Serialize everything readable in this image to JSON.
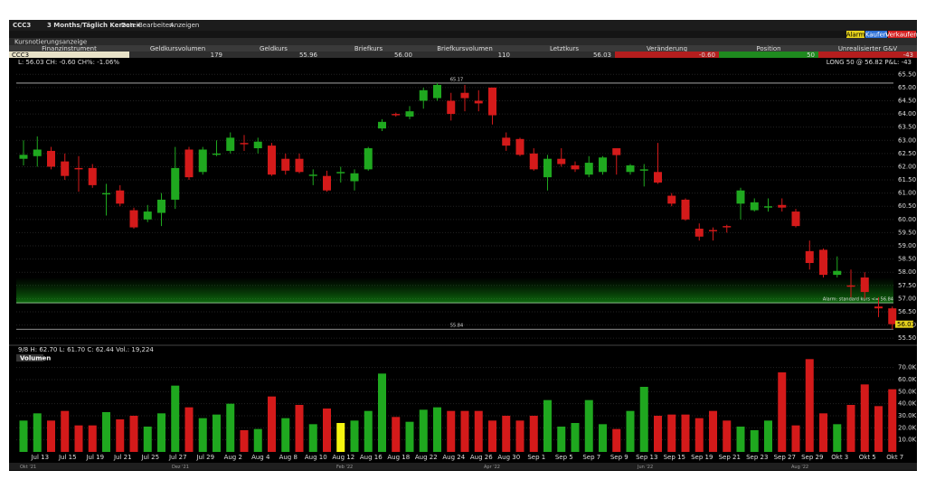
{
  "toolbar": {
    "symbol": "CCC3",
    "period": "3 Months/Täglich Kerzen ▾",
    "menu": [
      "Datei",
      "Bearbeiten",
      "Anzeigen"
    ],
    "buttons": [
      "Alarm",
      "Kaufen",
      "Verkaufen"
    ]
  },
  "quote_table": {
    "title": "Kursnotierungsanzeige",
    "columns": [
      "Finanzinstrument",
      "Geldkursvolumen",
      "Geldkurs",
      "Briefkurs",
      "Briefkursvolumen",
      "Letztkurs",
      "Veränderung",
      "Position",
      "Unrealisierter G&V"
    ],
    "row": [
      "CCC3",
      "179",
      "55.96",
      "56.00",
      "110",
      "56.03",
      "-0.60",
      "50",
      "-43"
    ]
  },
  "chart_data": [
    {
      "type": "candlestick",
      "info": "L: 56.03 CH: -0.60 CH%: -1.06%",
      "position_label": "LONG 50 @ 56.82 P&L: -43",
      "open": [
        62.3,
        62.4,
        62.6,
        62.2,
        61.95,
        61.95,
        60.95,
        61.1,
        60.35,
        60.0,
        60.25,
        60.75,
        62.65,
        61.8,
        62.45,
        62.6,
        62.9,
        62.7,
        62.8,
        62.3,
        62.3,
        61.65,
        61.65,
        61.75,
        61.45,
        61.9,
        63.45,
        64.0,
        63.9,
        64.5,
        64.6,
        64.5,
        64.8,
        64.5,
        65.0,
        63.1,
        63.05,
        62.5,
        61.6,
        62.3,
        62.05,
        61.7,
        61.8,
        62.7,
        61.8,
        61.85,
        61.8,
        60.9,
        60.75,
        59.65,
        59.6,
        59.75,
        60.6,
        60.35,
        60.45,
        60.55,
        60.3,
        58.8,
        58.85,
        57.9,
        57.5,
        57.8,
        56.7,
        56.63
      ],
      "high": [
        63.0,
        63.15,
        62.75,
        62.5,
        62.4,
        62.1,
        61.35,
        61.3,
        60.45,
        60.55,
        61.0,
        62.75,
        62.75,
        62.75,
        63.0,
        63.3,
        63.2,
        63.1,
        62.9,
        62.5,
        62.5,
        61.9,
        61.85,
        62.0,
        61.9,
        62.75,
        63.8,
        64.05,
        64.3,
        65.0,
        65.17,
        64.8,
        65.1,
        64.9,
        65.0,
        63.3,
        63.1,
        62.7,
        62.45,
        62.7,
        62.2,
        62.4,
        62.4,
        62.7,
        62.1,
        62.1,
        62.9,
        61.0,
        60.8,
        59.85,
        59.7,
        59.8,
        61.2,
        60.8,
        60.8,
        60.8,
        60.4,
        59.2,
        58.9,
        58.6,
        58.1,
        58.0,
        57.05,
        56.7
      ],
      "low": [
        62.05,
        62.0,
        61.9,
        61.5,
        61.05,
        61.2,
        60.15,
        60.5,
        59.65,
        59.9,
        59.75,
        60.4,
        61.5,
        61.7,
        62.4,
        62.5,
        62.6,
        62.5,
        61.65,
        61.7,
        61.75,
        61.3,
        61.05,
        61.4,
        61.1,
        61.85,
        63.35,
        63.9,
        63.8,
        64.2,
        64.5,
        63.75,
        64.1,
        64.1,
        63.6,
        62.6,
        62.4,
        61.85,
        61.1,
        62.0,
        61.8,
        61.6,
        61.7,
        61.7,
        61.7,
        61.25,
        61.35,
        60.5,
        59.95,
        59.2,
        59.2,
        59.5,
        60.0,
        60.3,
        60.3,
        60.3,
        59.7,
        58.1,
        57.8,
        57.8,
        57.05,
        57.0,
        56.3,
        55.84
      ],
      "close": [
        62.45,
        62.65,
        62.0,
        61.65,
        61.9,
        61.3,
        61.0,
        60.6,
        59.7,
        60.3,
        60.75,
        61.95,
        61.6,
        62.65,
        62.5,
        63.1,
        62.85,
        62.95,
        61.7,
        61.85,
        61.8,
        61.7,
        61.1,
        61.8,
        61.75,
        62.7,
        63.7,
        63.95,
        64.1,
        64.9,
        65.1,
        64.0,
        64.6,
        64.4,
        63.95,
        62.8,
        62.45,
        61.9,
        62.3,
        62.1,
        61.9,
        62.15,
        62.35,
        62.44,
        62.05,
        61.9,
        61.4,
        60.6,
        60.0,
        59.35,
        59.55,
        59.7,
        61.1,
        60.65,
        60.5,
        60.45,
        59.75,
        58.35,
        57.9,
        58.05,
        57.45,
        57.25,
        56.63,
        56.03
      ],
      "up_color": "#1fa81f",
      "down_color": "#d41a1a",
      "ylim": [
        55.3,
        65.75
      ],
      "yticks": [
        {
          "value": 55.5,
          "label": "55.50"
        },
        {
          "value": 56,
          "label": "56.00"
        },
        {
          "value": 56.5,
          "label": "56.50"
        },
        {
          "value": 57,
          "label": "57.00"
        },
        {
          "value": 57.5,
          "label": "57.50"
        },
        {
          "value": 58,
          "label": "58.00"
        },
        {
          "value": 58.5,
          "label": "58.50"
        },
        {
          "value": 59,
          "label": "59.00"
        },
        {
          "value": 59.5,
          "label": "59.50"
        },
        {
          "value": 60,
          "label": "60.00"
        },
        {
          "value": 60.5,
          "label": "60.50"
        },
        {
          "value": 61,
          "label": "61.00"
        },
        {
          "value": 61.5,
          "label": "61.50"
        },
        {
          "value": 62,
          "label": "62.00"
        },
        {
          "value": 62.5,
          "label": "62.50"
        },
        {
          "value": 63,
          "label": "63.00"
        },
        {
          "value": 63.5,
          "label": "63.50"
        },
        {
          "value": 64,
          "label": "64.00"
        },
        {
          "value": 64.5,
          "label": "64.50"
        },
        {
          "value": 65,
          "label": "65.00"
        },
        {
          "value": 65.5,
          "label": "65.50"
        }
      ],
      "grid": true,
      "reference_lines": [
        {
          "value": 65.17
        },
        {
          "value": 55.84
        },
        {
          "value": 56.84,
          "label": "Alarm: standard kurs <= 56.84"
        }
      ]
    },
    {
      "type": "bar",
      "title": "Volumen",
      "info": "9/8 H: 62.70 L: 61.70 C: 62.44 Vol.: 19,224",
      "categories": [
        null,
        "Jul 13",
        null,
        "Jul 15",
        null,
        "Jul 19",
        null,
        "Jul 21",
        null,
        "Jul 25",
        null,
        "Jul 27",
        null,
        "Jul 29",
        null,
        "Aug 2",
        null,
        "Aug 4",
        null,
        "Aug 8",
        null,
        "Aug 10",
        null,
        "Aug 12",
        null,
        "Aug 16",
        null,
        "Aug 18",
        null,
        "Aug 22",
        null,
        "Aug 24",
        null,
        "Aug 26",
        null,
        "Aug 30",
        null,
        "Sep 1",
        null,
        "Sep 5",
        null,
        "Sep 7",
        null,
        "Sep 9",
        null,
        "Sep 13",
        null,
        "Sep 15",
        null,
        "Sep 19",
        null,
        "Sep 21",
        null,
        "Sep 23",
        null,
        "Sep 27",
        null,
        "Sep 29",
        null,
        "Okt 3",
        null,
        "Okt 5",
        null,
        "Okt 7"
      ],
      "values": [
        26000,
        32000,
        26000,
        34000,
        22000,
        22000,
        33000,
        27000,
        30000,
        21000,
        32000,
        55000,
        37000,
        28000,
        31000,
        40000,
        18000,
        19000,
        46000,
        28000,
        39000,
        23000,
        36000,
        24000,
        26000,
        34000,
        65000,
        29000,
        25000,
        35000,
        37000,
        34000,
        34000,
        34000,
        26000,
        30000,
        26000,
        30000,
        43000,
        21000,
        24000,
        43000,
        23000,
        19000,
        34000,
        54000,
        30000,
        31000,
        31000,
        28000,
        34000,
        26000,
        21000,
        18000,
        26000,
        66000,
        22000,
        77000,
        32000,
        23000,
        39000,
        56000,
        38000,
        52000
      ],
      "colors": [
        "#1fa81f",
        "#1fa81f",
        "#d41a1a",
        "#d41a1a",
        "#d41a1a",
        "#d41a1a",
        "#1fa81f",
        "#d41a1a",
        "#d41a1a",
        "#1fa81f",
        "#1fa81f",
        "#1fa81f",
        "#d41a1a",
        "#1fa81f",
        "#1fa81f",
        "#1fa81f",
        "#d41a1a",
        "#1fa81f",
        "#d41a1a",
        "#1fa81f",
        "#d41a1a",
        "#1fa81f",
        "#d41a1a",
        "#f5f50f",
        "#1fa81f",
        "#1fa81f",
        "#1fa81f",
        "#d41a1a",
        "#1fa81f",
        "#1fa81f",
        "#1fa81f",
        "#d41a1a",
        "#d41a1a",
        "#d41a1a",
        "#d41a1a",
        "#d41a1a",
        "#d41a1a",
        "#d41a1a",
        "#1fa81f",
        "#1fa81f",
        "#1fa81f",
        "#1fa81f",
        "#1fa81f",
        "#d41a1a",
        "#1fa81f",
        "#1fa81f",
        "#d41a1a",
        "#d41a1a",
        "#d41a1a",
        "#d41a1a",
        "#d41a1a",
        "#d41a1a",
        "#1fa81f",
        "#1fa81f",
        "#1fa81f",
        "#d41a1a",
        "#d41a1a",
        "#d41a1a",
        "#d41a1a",
        "#1fa81f",
        "#d41a1a",
        "#d41a1a",
        "#d41a1a",
        "#d41a1a"
      ],
      "ylim": [
        0,
        78000
      ],
      "yticks": [
        {
          "value": 10000,
          "label": "10.0K"
        },
        {
          "value": 20000,
          "label": "20.0K"
        },
        {
          "value": 30000,
          "label": "30.0K"
        },
        {
          "value": 40000,
          "label": "40.0K"
        },
        {
          "value": 50000,
          "label": "50.0K"
        },
        {
          "value": 60000,
          "label": "60.0K"
        },
        {
          "value": 70000,
          "label": "70.0K"
        }
      ],
      "grid": true
    }
  ],
  "navigator_labels": [
    "Okt '21",
    "Dez '21",
    "Feb '22",
    "Apr '22",
    "Jun '22",
    "Aug '22"
  ]
}
